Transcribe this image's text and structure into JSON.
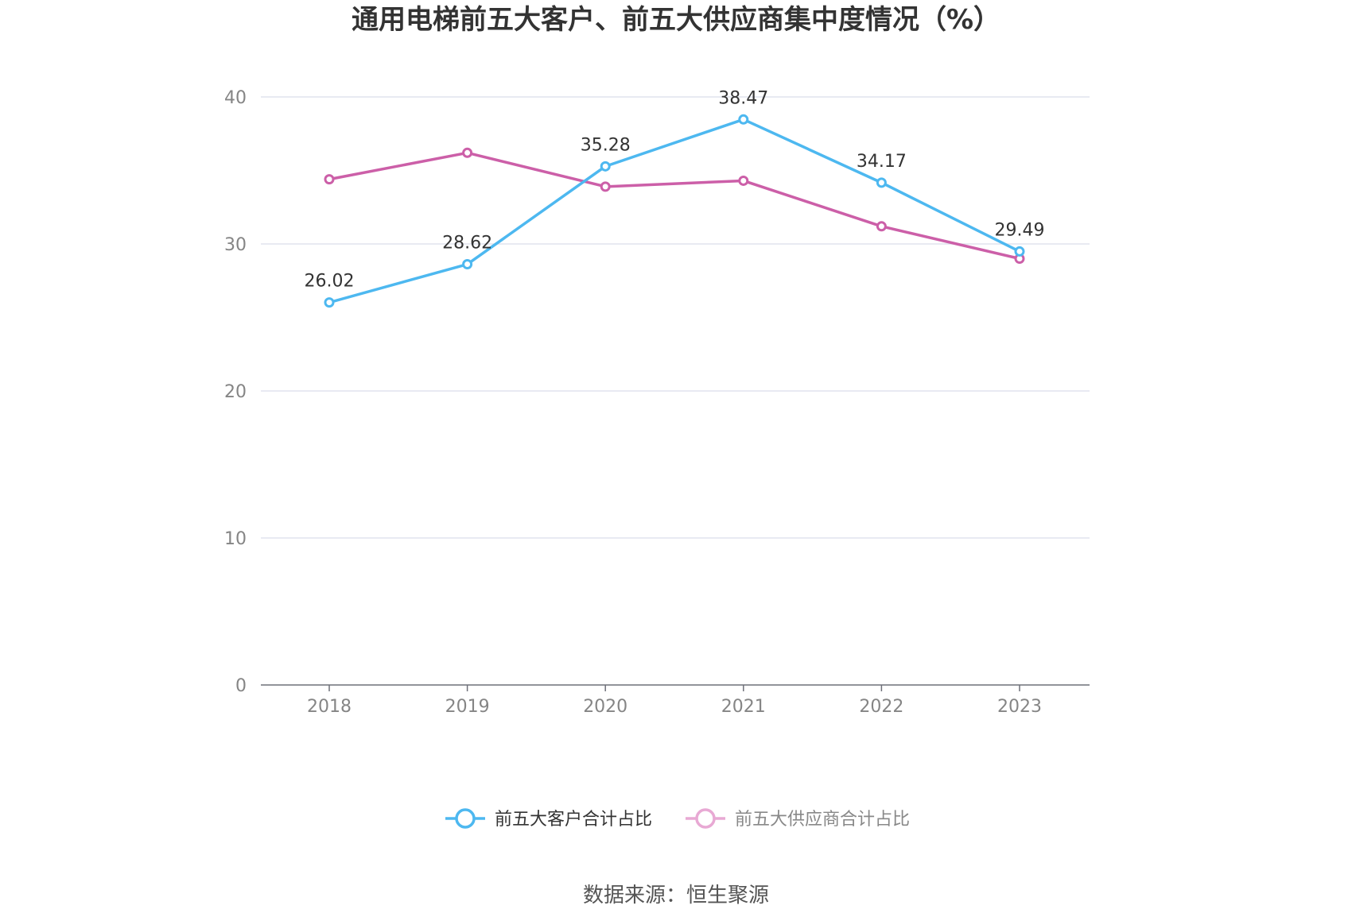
{
  "chart_data": {
    "type": "line",
    "title": "通用电梯前五大客户、前五大供应商集中度情况（%）",
    "categories": [
      "2018",
      "2019",
      "2020",
      "2021",
      "2022",
      "2023"
    ],
    "ylim": [
      0,
      40
    ],
    "yticks": [
      "0",
      "10",
      "20",
      "30",
      "40"
    ],
    "grid": true,
    "legend_position": "bottom",
    "series": [
      {
        "name": "前五大客户合计占比",
        "color": "#4db8f0",
        "values": [
          26.02,
          28.62,
          35.28,
          38.47,
          34.17,
          29.49
        ],
        "labels": [
          "26.02",
          "28.62",
          "35.28",
          "38.47",
          "34.17",
          "29.49"
        ],
        "active": true
      },
      {
        "name": "前五大供应商合计占比",
        "color": "#cc5fa8",
        "legend_color": "#e8a9d4",
        "values": [
          34.4,
          36.2,
          33.9,
          34.3,
          31.2,
          29.0
        ],
        "active": false
      }
    ],
    "source": "数据来源：恒生聚源"
  }
}
